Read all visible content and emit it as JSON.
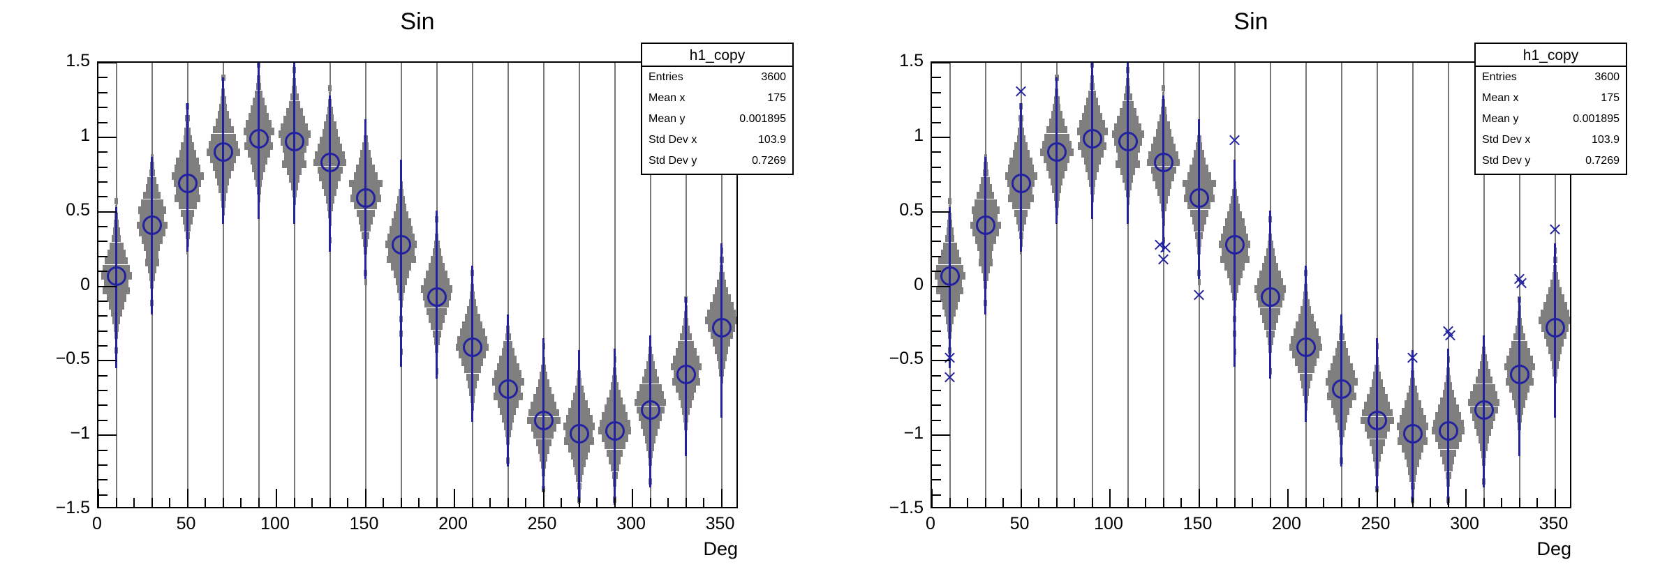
{
  "chart_data": {
    "type": "violin",
    "title": "Sin",
    "xlabel": "Deg",
    "ylabel": "",
    "x_range": [
      0,
      360
    ],
    "y_range": [
      -1.5,
      1.5
    ],
    "x_major_ticks": [
      0,
      50,
      100,
      150,
      200,
      250,
      300,
      350
    ],
    "x_major_labels": [
      "0",
      "50",
      "100",
      "150",
      "200",
      "250",
      "300",
      "350"
    ],
    "x_minor_step": 10,
    "y_major_ticks": [
      1.5,
      1.0,
      0.5,
      0.0,
      -0.5,
      -1.0,
      -1.5
    ],
    "y_major_labels": [
      "1.5",
      "1",
      "0.5",
      "0",
      "−0.5",
      "−1",
      "−1.5"
    ],
    "y_minor_step": 0.1,
    "grid": "vertical-at-bin-centers",
    "legend_position": "none",
    "bin_width_deg": 20,
    "slice_height_y": 0.05,
    "stats": {
      "title": "h1_copy",
      "rows": [
        {
          "label": "Entries",
          "value": "3600"
        },
        {
          "label": "Mean x",
          "value": "175"
        },
        {
          "label": "Mean y",
          "value": "0.001895"
        },
        {
          "label": "Std Dev x",
          "value": "103.9"
        },
        {
          "label": "Std Dev y",
          "value": "0.7269"
        }
      ]
    },
    "bins": [
      {
        "x": 10,
        "median": 0.07,
        "whisker": [
          -0.62,
          0.46
        ],
        "widths": [
          0.06,
          0.1,
          0.14,
          0.2,
          0.26,
          0.4,
          0.52,
          0.66,
          0.78,
          0.88,
          0.7,
          0.78,
          0.56,
          0.44,
          0.32,
          0.22,
          0.14,
          0.1,
          0.06
        ],
        "tails": [
          [
            0.5,
            0.08
          ],
          [
            -0.5,
            0.07
          ]
        ]
      },
      {
        "x": 30,
        "median": 0.41,
        "whisker": [
          -0.6,
          0.46
        ],
        "widths": [
          0.08,
          0.12,
          0.16,
          0.26,
          0.36,
          0.5,
          0.64,
          0.8,
          0.7,
          0.88,
          0.76,
          0.6,
          0.46,
          0.36,
          0.4,
          0.24,
          0.16,
          0.1,
          0.06
        ],
        "tails": [
          [
            -0.52,
            0.07
          ]
        ]
      },
      {
        "x": 50,
        "median": 0.69,
        "whisker": [
          -0.46,
          0.54
        ],
        "widths": [
          0.06,
          0.1,
          0.18,
          0.24,
          0.38,
          0.48,
          0.66,
          0.74,
          0.92,
          0.78,
          0.66,
          0.74,
          0.52,
          0.38,
          0.28,
          0.18,
          0.12,
          0.08,
          0.05
        ],
        "tails": [
          [
            0.52,
            0.09
          ],
          [
            0.44,
            0.12
          ]
        ]
      },
      {
        "x": 70,
        "median": 0.9,
        "whisker": [
          -0.48,
          0.5
        ],
        "widths": [
          0.05,
          0.1,
          0.16,
          0.22,
          0.32,
          0.44,
          0.6,
          0.72,
          0.84,
          0.96,
          0.74,
          0.6,
          0.46,
          0.34,
          0.26,
          0.16,
          0.12,
          0.08,
          0.05
        ],
        "tails": [
          [
            0.5,
            0.1
          ]
        ]
      },
      {
        "x": 90,
        "median": 0.99,
        "whisker": [
          -0.54,
          0.56
        ],
        "widths": [
          0.06,
          0.09,
          0.14,
          0.22,
          0.34,
          0.46,
          0.58,
          0.74,
          0.88,
          0.7,
          0.82,
          0.64,
          0.48,
          0.38,
          0.26,
          0.18,
          0.12,
          0.08,
          0.05
        ],
        "tails": [
          [
            0.5,
            0.09
          ]
        ]
      },
      {
        "x": 110,
        "median": 0.97,
        "whisker": [
          -0.55,
          0.58
        ],
        "widths": [
          0.05,
          0.1,
          0.15,
          0.24,
          0.32,
          0.48,
          0.62,
          0.78,
          0.92,
          0.8,
          0.68,
          0.58,
          0.7,
          0.42,
          0.3,
          0.2,
          0.12,
          0.08,
          0.05
        ],
        "tails": [
          [
            0.48,
            0.08
          ]
        ]
      },
      {
        "x": 130,
        "median": 0.83,
        "whisker": [
          -0.6,
          0.45
        ],
        "widths": [
          0.06,
          0.1,
          0.16,
          0.22,
          0.36,
          0.44,
          0.58,
          0.7,
          0.86,
          0.94,
          0.72,
          0.62,
          0.46,
          0.36,
          0.24,
          0.16,
          0.1,
          0.08,
          0.05
        ],
        "tails": [
          [
            0.5,
            0.08
          ],
          [
            -0.52,
            0.06
          ]
        ]
      },
      {
        "x": 150,
        "median": 0.59,
        "whisker": [
          -0.54,
          0.53
        ],
        "widths": [
          0.07,
          0.12,
          0.18,
          0.3,
          0.38,
          0.54,
          0.68,
          0.96,
          0.8,
          0.88,
          0.66,
          0.52,
          0.4,
          0.3,
          0.22,
          0.14,
          0.1,
          0.06,
          0.04
        ],
        "tails": [
          [
            -0.5,
            0.07
          ],
          [
            -0.56,
            0.06
          ]
        ]
      },
      {
        "x": 170,
        "median": 0.28,
        "whisker": [
          -0.82,
          0.57
        ],
        "widths": [
          0.05,
          0.08,
          0.14,
          0.22,
          0.3,
          0.42,
          0.56,
          0.66,
          0.78,
          0.9,
          0.76,
          0.84,
          0.58,
          0.44,
          0.32,
          0.22,
          0.14,
          0.08,
          0.05
        ],
        "tails": [
          [
            -0.5,
            0.08
          ],
          [
            -0.6,
            0.07
          ],
          [
            -0.72,
            0.06
          ]
        ]
      },
      {
        "x": 190,
        "median": -0.07,
        "whisker": [
          -0.55,
          0.58
        ],
        "widths": [
          0.06,
          0.1,
          0.16,
          0.24,
          0.34,
          0.46,
          0.62,
          0.74,
          0.9,
          0.8,
          0.7,
          0.58,
          0.46,
          0.34,
          0.24,
          0.16,
          0.1,
          0.07,
          0.04
        ],
        "tails": [
          [
            0.52,
            0.07
          ],
          [
            -0.5,
            0.06
          ]
        ]
      },
      {
        "x": 210,
        "median": -0.41,
        "whisker": [
          -0.5,
          0.55
        ],
        "widths": [
          0.05,
          0.09,
          0.14,
          0.2,
          0.3,
          0.44,
          0.58,
          0.72,
          0.86,
          0.94,
          0.78,
          0.62,
          0.48,
          0.36,
          0.26,
          0.18,
          0.12,
          0.08,
          0.05
        ],
        "tails": [
          [
            0.5,
            0.07
          ]
        ]
      },
      {
        "x": 230,
        "median": -0.69,
        "whisker": [
          -0.52,
          0.5
        ],
        "widths": [
          0.06,
          0.1,
          0.16,
          0.26,
          0.36,
          0.5,
          0.64,
          0.78,
          0.92,
          0.74,
          0.84,
          0.6,
          0.46,
          0.34,
          0.24,
          0.16,
          0.1,
          0.06,
          0.04
        ],
        "tails": [
          [
            -0.48,
            0.08
          ]
        ]
      },
      {
        "x": 250,
        "median": -0.9,
        "whisker": [
          -0.48,
          0.55
        ],
        "widths": [
          0.05,
          0.08,
          0.14,
          0.22,
          0.32,
          0.44,
          0.6,
          0.74,
          0.88,
          0.96,
          0.72,
          0.58,
          0.44,
          0.32,
          0.22,
          0.14,
          0.1,
          0.06,
          0.04
        ],
        "tails": [
          [
            0.5,
            0.06
          ],
          [
            -0.46,
            0.08
          ]
        ]
      },
      {
        "x": 270,
        "median": -0.99,
        "whisker": [
          -0.46,
          0.56
        ],
        "widths": [
          0.06,
          0.1,
          0.15,
          0.24,
          0.34,
          0.48,
          0.62,
          0.76,
          0.9,
          0.78,
          0.86,
          0.62,
          0.48,
          0.36,
          0.26,
          0.18,
          0.12,
          0.08,
          0.05
        ],
        "tails": [
          [
            -0.44,
            0.08
          ]
        ]
      },
      {
        "x": 290,
        "median": -0.97,
        "whisker": [
          -0.5,
          0.55
        ],
        "widths": [
          0.05,
          0.09,
          0.14,
          0.22,
          0.32,
          0.46,
          0.6,
          0.74,
          0.88,
          0.94,
          0.76,
          0.6,
          0.46,
          0.34,
          0.24,
          0.16,
          0.1,
          0.06,
          0.04
        ],
        "tails": [
          [
            0.48,
            0.06
          ],
          [
            -0.46,
            0.07
          ]
        ]
      },
      {
        "x": 310,
        "median": -0.83,
        "whisker": [
          -0.52,
          0.5
        ],
        "widths": [
          0.06,
          0.1,
          0.16,
          0.24,
          0.36,
          0.48,
          0.64,
          0.78,
          0.9,
          0.8,
          0.66,
          0.54,
          0.42,
          0.3,
          0.22,
          0.14,
          0.1,
          0.06,
          0.04
        ],
        "tails": [
          [
            -0.48,
            0.07
          ]
        ]
      },
      {
        "x": 330,
        "median": -0.59,
        "whisker": [
          -0.55,
          0.52
        ],
        "widths": [
          0.05,
          0.09,
          0.15,
          0.22,
          0.34,
          0.46,
          0.6,
          0.76,
          0.88,
          0.72,
          0.8,
          0.58,
          0.44,
          0.32,
          0.22,
          0.14,
          0.1,
          0.06,
          0.04
        ],
        "tails": [
          [
            0.5,
            0.08
          ],
          [
            0.44,
            0.06
          ]
        ]
      },
      {
        "x": 350,
        "median": -0.28,
        "whisker": [
          -0.6,
          0.57
        ],
        "widths": [
          0.06,
          0.1,
          0.16,
          0.26,
          0.38,
          0.52,
          0.68,
          0.82,
          0.94,
          0.78,
          0.64,
          0.5,
          0.38,
          0.28,
          0.2,
          0.14,
          0.08,
          0.06,
          0.04
        ],
        "tails": [
          [
            0.46,
            0.1
          ],
          [
            0.52,
            0.06
          ]
        ]
      }
    ],
    "panels": [
      {
        "id": "left",
        "title": "Sin",
        "outliers": []
      },
      {
        "id": "right",
        "title": "Sin",
        "outliers": [
          [
            10,
            -0.48
          ],
          [
            10,
            -0.61
          ],
          [
            50,
            1.31
          ],
          [
            128,
            0.28
          ],
          [
            131,
            0.26
          ],
          [
            130,
            0.18
          ],
          [
            150,
            -0.06
          ],
          [
            170,
            0.98
          ],
          [
            270,
            -0.48
          ],
          [
            290,
            -0.3
          ],
          [
            291,
            -0.33
          ],
          [
            330,
            0.05
          ],
          [
            331,
            0.02
          ],
          [
            350,
            0.38
          ]
        ]
      }
    ],
    "colors": {
      "violin_fill": "#7f7f7f",
      "marker_blue": "#2222a0",
      "gridline": "#787878",
      "frame": "#000000",
      "background": "#ffffff",
      "text": "#000000"
    }
  }
}
